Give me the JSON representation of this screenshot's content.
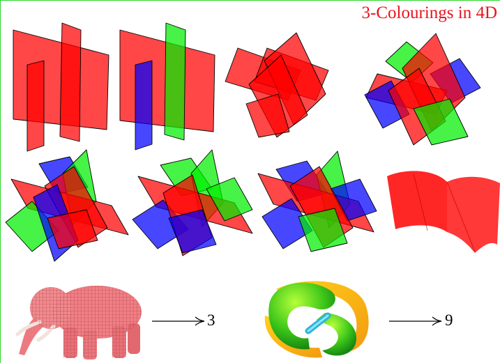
{
  "slide": {
    "title": "3-Colourings in 4D",
    "mappings": [
      {
        "value": "3",
        "object_icon": "elephant-mesh-icon"
      },
      {
        "value": "9",
        "object_icon": "torus-knot-surface-icon"
      }
    ]
  },
  "colors": {
    "title": "#e8141e",
    "border": "#2bd62b",
    "plane_red": "#ff0000",
    "plane_green": "#00ee00",
    "plane_blue": "#0000ff"
  }
}
